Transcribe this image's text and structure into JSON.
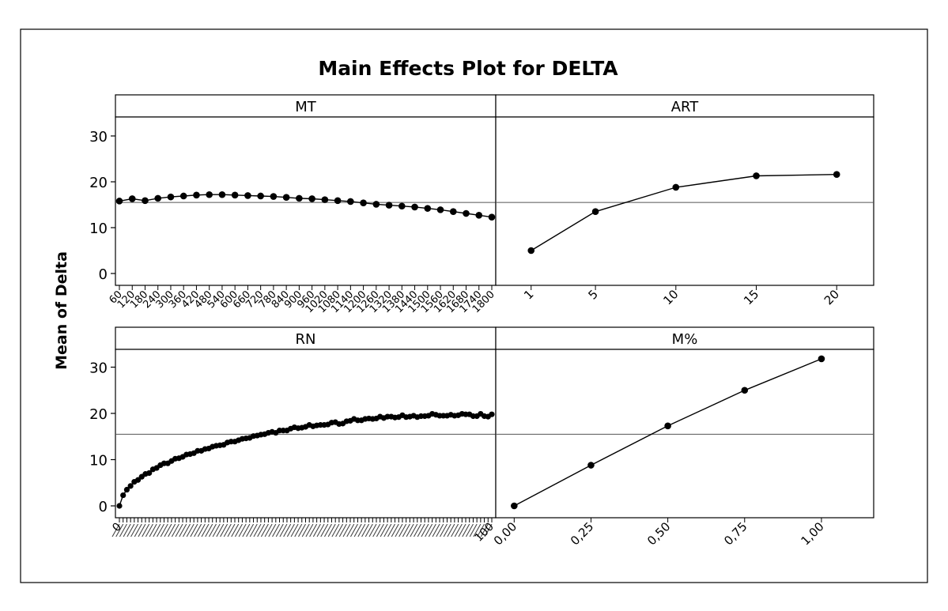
{
  "chart_data": {
    "type": "line",
    "title": "Main Effects Plot for DELTA",
    "ylabel": "Mean of Delta",
    "ylim": [
      -1,
      34
    ],
    "yticks": [
      0,
      10,
      20,
      30
    ],
    "overall_mean": 15.5,
    "panels": [
      {
        "name": "MT",
        "xlabels": [
          "60",
          "120",
          "180",
          "240",
          "300",
          "360",
          "420",
          "480",
          "540",
          "600",
          "660",
          "720",
          "780",
          "840",
          "900",
          "960",
          "1020",
          "1080",
          "1140",
          "1200",
          "1260",
          "1320",
          "1380",
          "1440",
          "1500",
          "1560",
          "1620",
          "1680",
          "1740",
          "1800"
        ],
        "values": [
          15.8,
          16.3,
          15.9,
          16.4,
          16.7,
          16.9,
          17.1,
          17.2,
          17.2,
          17.1,
          17.0,
          16.9,
          16.8,
          16.6,
          16.4,
          16.3,
          16.1,
          15.9,
          15.7,
          15.4,
          15.1,
          14.9,
          14.7,
          14.5,
          14.2,
          13.9,
          13.5,
          13.1,
          12.7,
          12.3
        ]
      },
      {
        "name": "ART",
        "xlabels": [
          "1",
          "5",
          "10",
          "15",
          "20"
        ],
        "x": [
          1,
          5,
          10,
          15,
          20
        ],
        "xlim": [
          -1.2,
          22.3
        ],
        "values": [
          5.0,
          13.5,
          18.8,
          21.3,
          21.6
        ]
      },
      {
        "name": "RN",
        "xlabels": [
          "0",
          "100"
        ],
        "x_count": 101,
        "note": "RN has 101 levels (0-100); tick labels are densely overlapping in the original",
        "values": [
          0.0,
          2.3,
          3.5,
          4.3,
          5.2,
          5.6,
          6.3,
          6.9,
          7.1,
          7.9,
          8.2,
          8.8,
          9.2,
          9.2,
          9.7,
          10.2,
          10.3,
          10.6,
          11.1,
          11.2,
          11.4,
          11.9,
          11.9,
          12.3,
          12.4,
          12.8,
          13.0,
          13.1,
          13.2,
          13.7,
          13.9,
          13.9,
          14.2,
          14.5,
          14.6,
          14.7,
          15.1,
          15.2,
          15.4,
          15.5,
          15.8,
          16.0,
          15.8,
          16.3,
          16.3,
          16.3,
          16.7,
          17.0,
          16.8,
          16.9,
          17.1,
          17.5,
          17.2,
          17.4,
          17.5,
          17.5,
          17.6,
          18.0,
          18.1,
          17.7,
          17.8,
          18.3,
          18.4,
          18.8,
          18.5,
          18.5,
          18.8,
          18.9,
          18.8,
          18.9,
          19.3,
          19.0,
          19.3,
          19.3,
          19.1,
          19.2,
          19.6,
          19.2,
          19.3,
          19.5,
          19.2,
          19.4,
          19.4,
          19.5,
          19.9,
          19.7,
          19.5,
          19.5,
          19.5,
          19.7,
          19.5,
          19.6,
          19.9,
          19.8,
          19.8,
          19.4,
          19.4,
          19.9,
          19.4,
          19.3,
          19.8
        ]
      },
      {
        "name": "M%",
        "xlabels": [
          "0,00",
          "0,25",
          "0,50",
          "0,75",
          "1,00"
        ],
        "x": [
          0.0,
          0.25,
          0.5,
          0.75,
          1.0
        ],
        "xlim": [
          -0.06,
          1.17
        ],
        "values": [
          0.0,
          8.8,
          17.3,
          25.0,
          31.8
        ]
      }
    ]
  }
}
